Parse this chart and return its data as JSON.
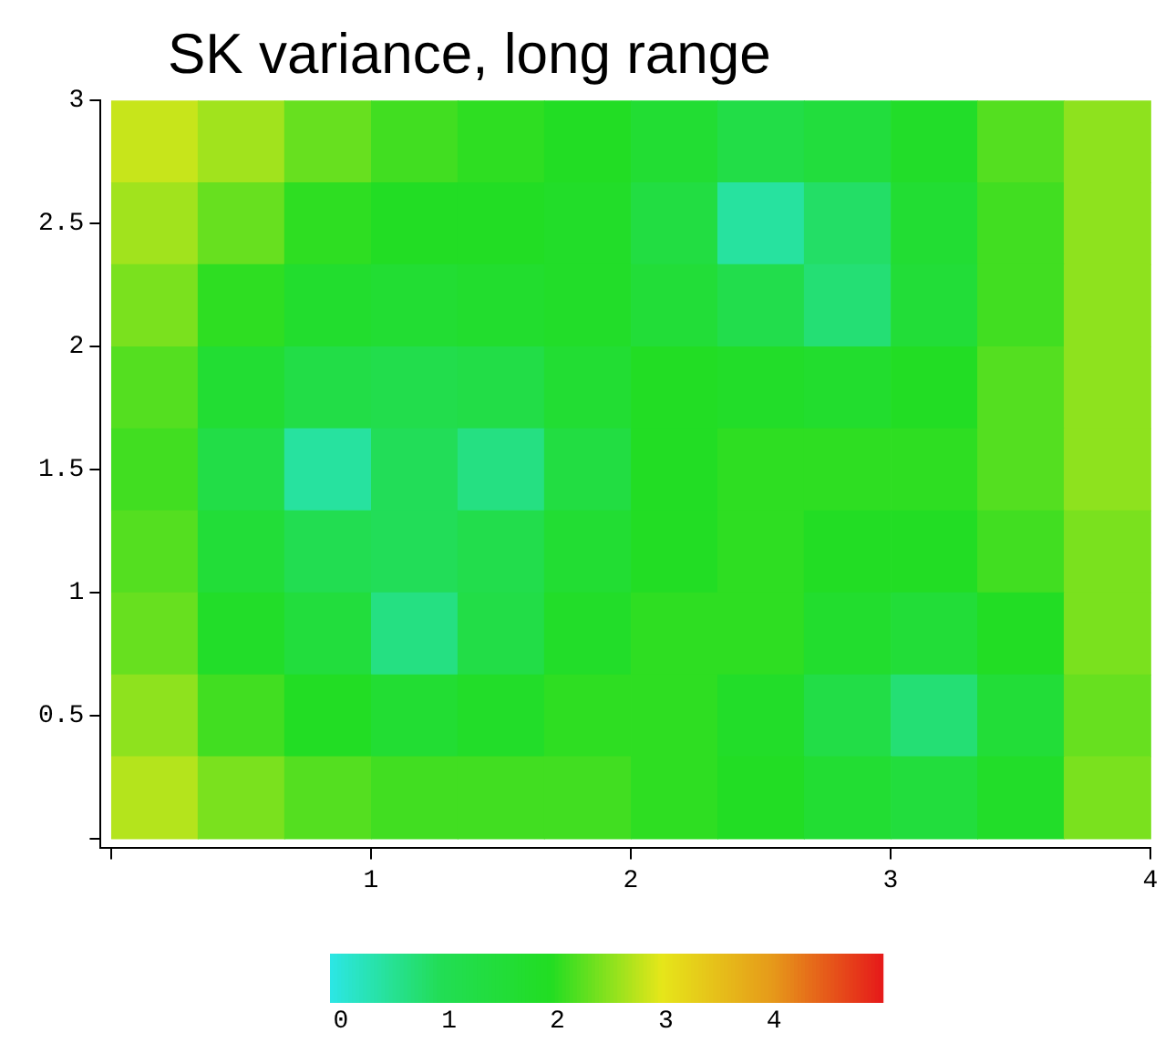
{
  "chart_data": {
    "type": "heatmap",
    "title": "SK variance, long range",
    "x": [
      0.167,
      0.5,
      0.833,
      1.167,
      1.5,
      1.833,
      2.167,
      2.5,
      2.833,
      3.167,
      3.5,
      3.833
    ],
    "y": [
      2.833,
      2.5,
      2.167,
      1.833,
      1.5,
      1.167,
      0.833,
      0.5,
      0.167
    ],
    "cells": [
      [
        2.8,
        2.6,
        2.3,
        2.1,
        2.0,
        1.9,
        1.6,
        1.2,
        1.4,
        1.8,
        2.2,
        2.5
      ],
      [
        2.6,
        2.3,
        2.0,
        1.9,
        1.9,
        1.8,
        1.3,
        0.4,
        0.8,
        1.6,
        2.1,
        2.5
      ],
      [
        2.4,
        2.0,
        1.7,
        1.6,
        1.7,
        1.8,
        1.5,
        1.1,
        0.7,
        1.5,
        2.1,
        2.5
      ],
      [
        2.2,
        1.6,
        1.2,
        1.1,
        1.2,
        1.6,
        1.9,
        1.8,
        1.7,
        1.9,
        2.2,
        2.5
      ],
      [
        2.1,
        1.2,
        0.4,
        0.9,
        0.6,
        1.3,
        1.9,
        2.0,
        2.0,
        2.0,
        2.2,
        2.5
      ],
      [
        2.2,
        1.5,
        1.0,
        0.9,
        1.1,
        1.6,
        1.9,
        2.0,
        1.9,
        1.9,
        2.1,
        2.4
      ],
      [
        2.3,
        1.8,
        1.4,
        0.6,
        1.2,
        1.8,
        2.0,
        2.0,
        1.7,
        1.5,
        1.9,
        2.4
      ],
      [
        2.5,
        2.1,
        1.9,
        1.6,
        1.8,
        2.0,
        2.0,
        1.8,
        1.2,
        0.7,
        1.5,
        2.3
      ],
      [
        2.7,
        2.4,
        2.2,
        2.1,
        2.1,
        2.1,
        2.0,
        1.9,
        1.6,
        1.4,
        1.8,
        2.4
      ]
    ],
    "colors": [
      "#2ce6e6",
      "#22dd55",
      "#22dd22",
      "#e6e61a",
      "#e69a1a",
      "#e61a1a"
    ],
    "xlim": [
      -0.04,
      4
    ],
    "xticks": [
      {
        "value": 0,
        "label": null
      },
      1,
      2,
      3,
      4
    ],
    "ylim": [
      -0.04,
      3
    ],
    "yticks": [
      {
        "value": 0,
        "label": null
      },
      0.5,
      1,
      1.5,
      2,
      2.5,
      3
    ],
    "clim": [
      -0.1,
      5
    ],
    "cticks": [
      0,
      1,
      2,
      3,
      4
    ],
    "grid": false
  }
}
